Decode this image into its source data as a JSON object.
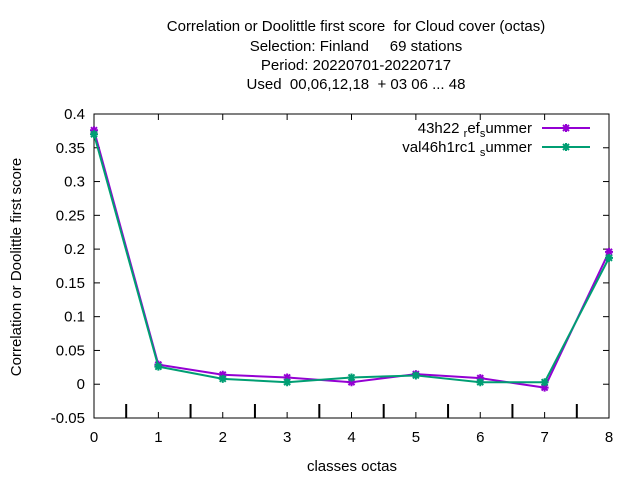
{
  "chart_data": {
    "type": "line",
    "title_lines": [
      "Correlation or Doolittle first score  for Cloud cover (octas)",
      "Selection: Finland     69 stations",
      "Period: 20220701-20220717",
      "Used  00,06,12,18  + 03 06 ... 48"
    ],
    "xlabel": "classes octas",
    "ylabel": "Correlation or Doolittle first score",
    "xlim": [
      0,
      8
    ],
    "ylim": [
      -0.05,
      0.4
    ],
    "x_ticks": [
      "0",
      "1",
      "2",
      "3",
      "4",
      "5",
      "6",
      "7",
      "8"
    ],
    "y_ticks": [
      "-0.05",
      "0",
      "0.05",
      "0.1",
      "0.15",
      "0.2",
      "0.25",
      "0.3",
      "0.35",
      "0.4"
    ],
    "x": [
      0,
      1,
      2,
      3,
      4,
      5,
      6,
      7,
      8
    ],
    "series": [
      {
        "name": "43h22_ref_summer",
        "label_parts": [
          "43h22 ",
          "r",
          "ef",
          "s",
          "ummer"
        ],
        "color": "#9400d3",
        "values": [
          0.376,
          0.029,
          0.014,
          0.01,
          0.003,
          0.015,
          0.009,
          -0.005,
          0.196
        ]
      },
      {
        "name": "val46h1rc1_summer",
        "label_parts": [
          "val46h1rc1 ",
          "s",
          "ummer"
        ],
        "color": "#009e73",
        "values": [
          0.37,
          0.026,
          0.008,
          0.003,
          0.01,
          0.013,
          0.003,
          0.003,
          0.187
        ]
      }
    ],
    "grid": false,
    "legend_position": "top-right"
  }
}
